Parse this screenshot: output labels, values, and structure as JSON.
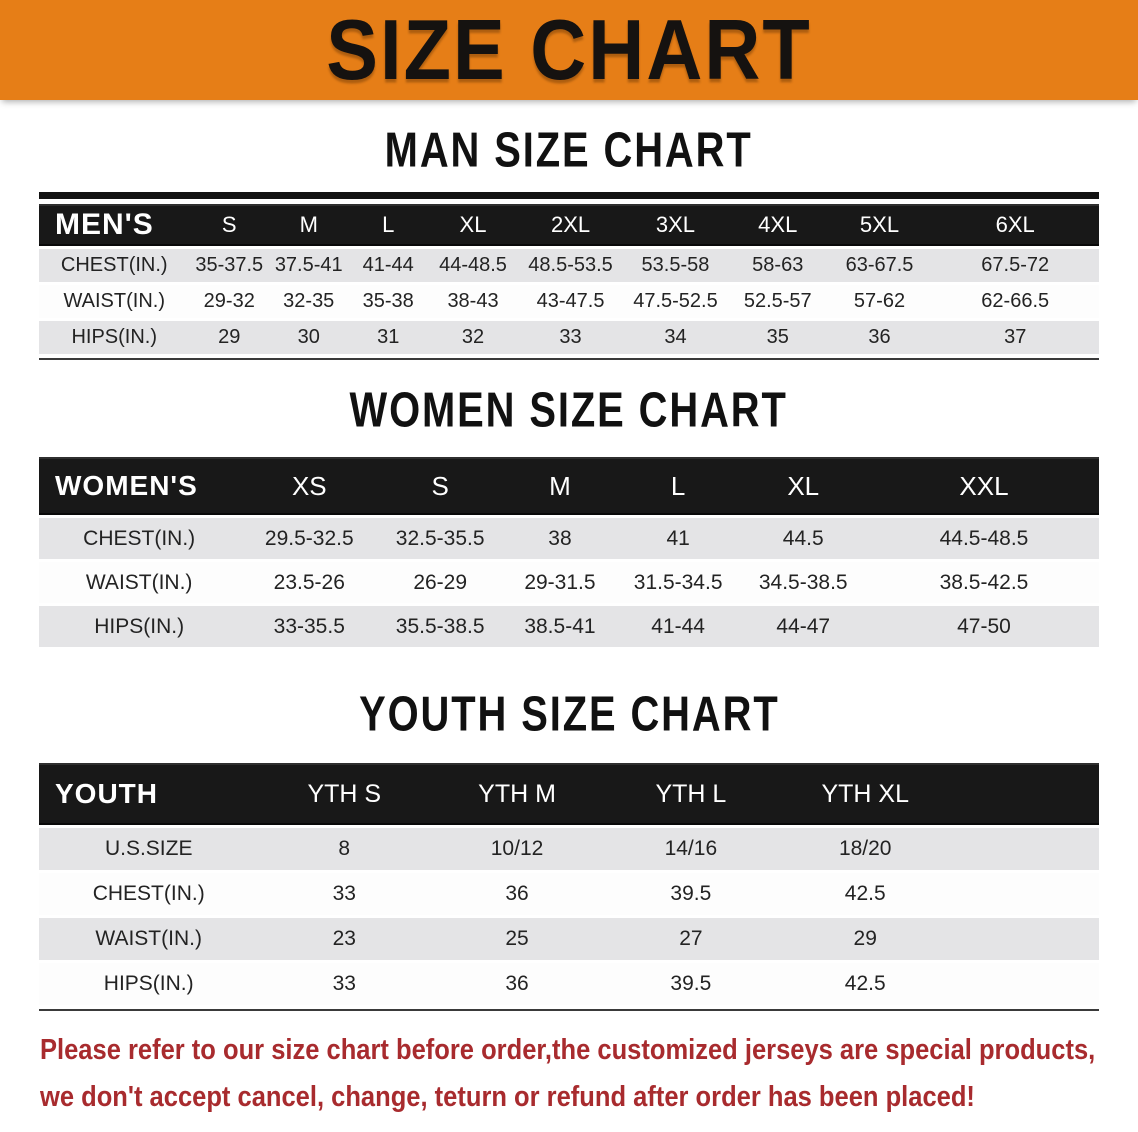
{
  "colors": {
    "banner_bg": "#E67E17",
    "header_bg": "#181818",
    "stripe": "#E4E4E6",
    "disclaimer": "#A82B2E"
  },
  "banner": {
    "title": "SIZE CHART"
  },
  "sections": [
    {
      "heading": "MAN SIZE CHART",
      "table": {
        "label": "MEN'S",
        "sizes": [
          "S",
          "M",
          "L",
          "XL",
          "2XL",
          "3XL",
          "4XL",
          "5XL",
          "6XL"
        ],
        "rows": [
          {
            "label": "CHEST(IN.)",
            "values": [
              "35-37.5",
              "37.5-41",
              "41-44",
              "44-48.5",
              "48.5-53.5",
              "53.5-58",
              "58-63",
              "63-67.5",
              "67.5-72"
            ]
          },
          {
            "label": "WAIST(IN.)",
            "values": [
              "29-32",
              "32-35",
              "35-38",
              "38-43",
              "43-47.5",
              "47.5-52.5",
              "52.5-57",
              "57-62",
              "62-66.5"
            ]
          },
          {
            "label": "HIPS(IN.)",
            "values": [
              "29",
              "30",
              "31",
              "32",
              "33",
              "34",
              "35",
              "36",
              "37"
            ]
          }
        ]
      }
    },
    {
      "heading": "WOMEN SIZE CHART",
      "table": {
        "label": "WOMEN'S",
        "sizes": [
          "XS",
          "S",
          "M",
          "L",
          "XL",
          "XXL"
        ],
        "rows": [
          {
            "label": "CHEST(IN.)",
            "values": [
              "29.5-32.5",
              "32.5-35.5",
              "38",
              "41",
              "44.5",
              "44.5-48.5"
            ]
          },
          {
            "label": "WAIST(IN.)",
            "values": [
              "23.5-26",
              "26-29",
              "29-31.5",
              "31.5-34.5",
              "34.5-38.5",
              "38.5-42.5"
            ]
          },
          {
            "label": "HIPS(IN.)",
            "values": [
              "33-35.5",
              "35.5-38.5",
              "38.5-41",
              "41-44",
              "44-47",
              "47-50"
            ]
          }
        ]
      }
    },
    {
      "heading": "YOUTH SIZE CHART",
      "table": {
        "label": "YOUTH",
        "sizes": [
          "YTH S",
          "YTH M",
          "YTH L",
          "YTH XL"
        ],
        "rows": [
          {
            "label": "U.S.SIZE",
            "values": [
              "8",
              "10/12",
              "14/16",
              "18/20"
            ]
          },
          {
            "label": "CHEST(IN.)",
            "values": [
              "33",
              "36",
              "39.5",
              "42.5"
            ]
          },
          {
            "label": "WAIST(IN.)",
            "values": [
              "23",
              "25",
              "27",
              "29"
            ]
          },
          {
            "label": "HIPS(IN.)",
            "values": [
              "33",
              "36",
              "39.5",
              "42.5"
            ]
          }
        ]
      }
    }
  ],
  "disclaimer": {
    "lines": [
      "Please refer to our size chart before order,the customized jerseys are special products,",
      "we don't accept cancel, change, teturn or refund after order has been placed!"
    ]
  }
}
